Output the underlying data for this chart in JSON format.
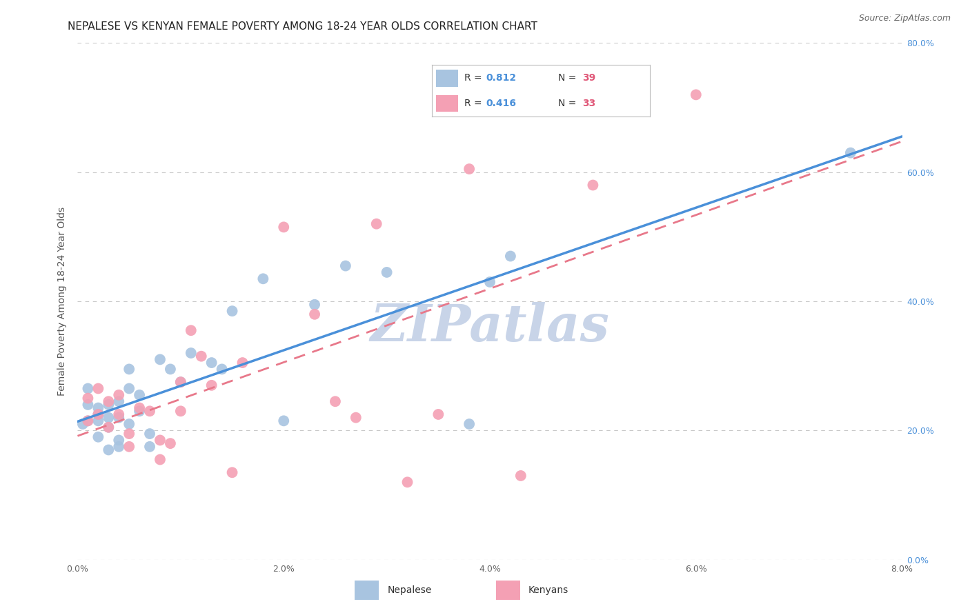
{
  "title": "NEPALESE VS KENYAN FEMALE POVERTY AMONG 18-24 YEAR OLDS CORRELATION CHART",
  "source": "Source: ZipAtlas.com",
  "ylabel": "Female Poverty Among 18-24 Year Olds",
  "xlim": [
    0.0,
    0.08
  ],
  "ylim": [
    0.0,
    0.8
  ],
  "xticks": [
    0.0,
    0.02,
    0.04,
    0.06,
    0.08
  ],
  "yticks": [
    0.0,
    0.2,
    0.4,
    0.6,
    0.8
  ],
  "xticklabels": [
    "0.0%",
    "2.0%",
    "4.0%",
    "6.0%",
    "8.0%"
  ],
  "yticklabels": [
    "0.0%",
    "20.0%",
    "40.0%",
    "60.0%",
    "80.0%"
  ],
  "background_color": "#ffffff",
  "grid_color": "#c8c8c8",
  "nepalese_color": "#a8c4e0",
  "kenyan_color": "#f4a0b4",
  "nepalese_line_color": "#4a90d9",
  "kenyan_line_color": "#e8788a",
  "legend_R_nepalese": "R = 0.812",
  "legend_N_nepalese": "N = 39",
  "legend_R_kenyan": "R = 0.416",
  "legend_N_kenyan": "N = 33",
  "nepalese_x": [
    0.0005,
    0.001,
    0.001,
    0.001,
    0.002,
    0.002,
    0.002,
    0.002,
    0.003,
    0.003,
    0.003,
    0.003,
    0.004,
    0.004,
    0.004,
    0.004,
    0.005,
    0.005,
    0.005,
    0.006,
    0.006,
    0.007,
    0.007,
    0.008,
    0.009,
    0.01,
    0.011,
    0.013,
    0.014,
    0.015,
    0.018,
    0.02,
    0.023,
    0.026,
    0.03,
    0.038,
    0.04,
    0.042,
    0.075
  ],
  "nepalese_y": [
    0.21,
    0.265,
    0.24,
    0.215,
    0.225,
    0.235,
    0.19,
    0.215,
    0.24,
    0.22,
    0.205,
    0.17,
    0.245,
    0.22,
    0.185,
    0.175,
    0.21,
    0.295,
    0.265,
    0.23,
    0.255,
    0.195,
    0.175,
    0.31,
    0.295,
    0.275,
    0.32,
    0.305,
    0.295,
    0.385,
    0.435,
    0.215,
    0.395,
    0.455,
    0.445,
    0.21,
    0.43,
    0.47,
    0.63
  ],
  "kenyan_x": [
    0.001,
    0.001,
    0.002,
    0.002,
    0.003,
    0.003,
    0.004,
    0.004,
    0.005,
    0.005,
    0.006,
    0.007,
    0.008,
    0.008,
    0.009,
    0.01,
    0.01,
    0.011,
    0.012,
    0.013,
    0.015,
    0.016,
    0.02,
    0.023,
    0.025,
    0.027,
    0.029,
    0.032,
    0.035,
    0.038,
    0.043,
    0.05,
    0.06
  ],
  "kenyan_y": [
    0.25,
    0.215,
    0.265,
    0.225,
    0.245,
    0.205,
    0.255,
    0.225,
    0.175,
    0.195,
    0.235,
    0.23,
    0.185,
    0.155,
    0.18,
    0.275,
    0.23,
    0.355,
    0.315,
    0.27,
    0.135,
    0.305,
    0.515,
    0.38,
    0.245,
    0.22,
    0.52,
    0.12,
    0.225,
    0.605,
    0.13,
    0.58,
    0.72
  ],
  "watermark": "ZIPatlas",
  "watermark_color": "#c8d4e8",
  "title_fontsize": 11,
  "axis_label_fontsize": 10,
  "tick_fontsize": 9,
  "legend_fontsize": 10,
  "source_fontsize": 9,
  "value_color": "#4a90d9",
  "n_color": "#e05878"
}
